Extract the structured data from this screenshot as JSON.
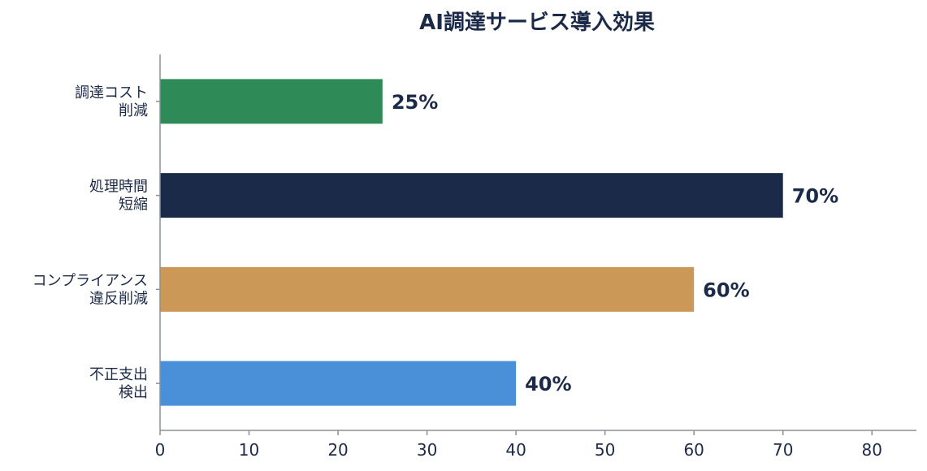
{
  "chart_data": {
    "type": "bar",
    "orientation": "horizontal",
    "title": "AI調達サービス導入効果",
    "xlabel": "",
    "ylabel": "",
    "xlim": [
      0,
      85
    ],
    "xticks": [
      0,
      10,
      20,
      30,
      40,
      50,
      60,
      70,
      80
    ],
    "grid": false,
    "categories": [
      [
        "調達コスト",
        "削減"
      ],
      [
        "処理時間",
        "短縮"
      ],
      [
        "コンプライアンス",
        "違反削減"
      ],
      [
        "不正支出",
        "検出"
      ]
    ],
    "values": [
      25,
      70,
      60,
      40
    ],
    "value_labels": [
      "25%",
      "70%",
      "60%",
      "40%"
    ],
    "colors": [
      "#2e8b57",
      "#1c2a4a",
      "#cc9858",
      "#4a90d9"
    ],
    "text_color": "#1c2a4a",
    "axis_color": "#8a8f99"
  }
}
